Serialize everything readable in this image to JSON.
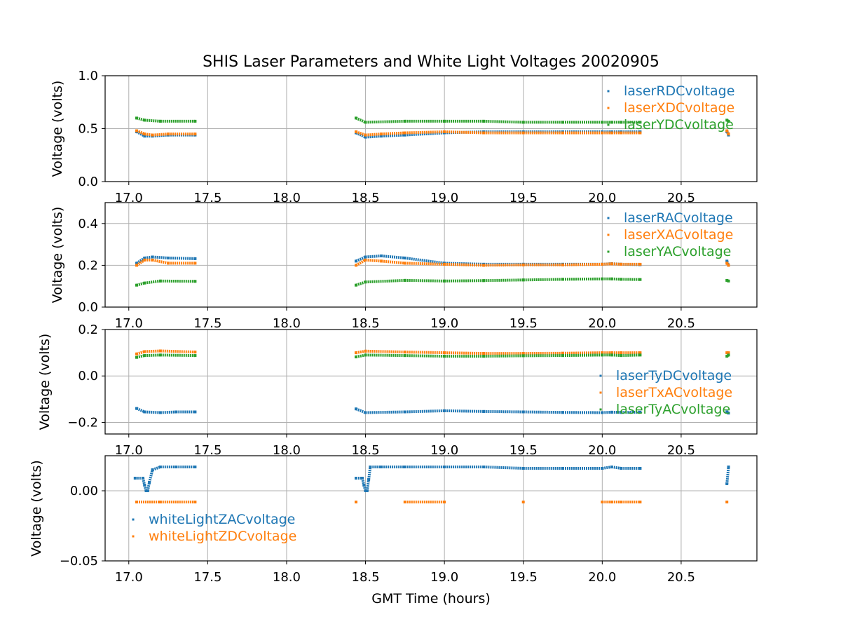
{
  "figure": {
    "title": "SHIS Laser Parameters and White Light Voltages 20020905",
    "xlabel": "GMT Time (hours)"
  },
  "colors": {
    "c0": "#1f77b4",
    "c1": "#ff7f0e",
    "c2": "#2ca02c",
    "grid": "#b0b0b0"
  },
  "chart_data": [
    {
      "type": "scatter",
      "ylabel": "Voltage (volts)",
      "xlim": [
        16.85,
        20.98
      ],
      "ylim": [
        0.0,
        1.0
      ],
      "xticks": [
        17.0,
        17.5,
        18.0,
        18.5,
        19.0,
        19.5,
        20.0,
        20.5
      ],
      "xtick_labels": [
        "17.0",
        "17.5",
        "18.0",
        "18.5",
        "19.0",
        "19.5",
        "20.0",
        "20.5"
      ],
      "yticks": [
        0.0,
        0.5,
        1.0
      ],
      "ytick_labels": [
        "0.0",
        "0.5",
        "1.0"
      ],
      "grid": true,
      "legend_position": "upper-right",
      "series": [
        {
          "name": "laserRDCvoltage",
          "color": "#1f77b4",
          "points": [
            [
              17.05,
              0.47
            ],
            [
              17.1,
              0.43
            ],
            [
              17.15,
              0.43
            ],
            [
              17.25,
              0.44
            ],
            [
              17.42,
              0.44
            ],
            [
              18.44,
              0.46
            ],
            [
              18.5,
              0.42
            ],
            [
              18.6,
              0.43
            ],
            [
              18.75,
              0.44
            ],
            [
              19.0,
              0.46
            ],
            [
              19.25,
              0.47
            ],
            [
              19.5,
              0.47
            ],
            [
              19.75,
              0.47
            ],
            [
              20.0,
              0.47
            ],
            [
              20.06,
              0.47
            ],
            [
              20.12,
              0.47
            ],
            [
              20.24,
              0.47
            ],
            [
              20.79,
              0.47
            ],
            [
              20.8,
              0.44
            ]
          ]
        },
        {
          "name": "laserXDCvoltage",
          "color": "#ff7f0e",
          "points": [
            [
              17.05,
              0.48
            ],
            [
              17.1,
              0.45
            ],
            [
              17.15,
              0.44
            ],
            [
              17.25,
              0.45
            ],
            [
              17.42,
              0.45
            ],
            [
              18.44,
              0.47
            ],
            [
              18.5,
              0.44
            ],
            [
              18.6,
              0.45
            ],
            [
              18.75,
              0.46
            ],
            [
              19.0,
              0.47
            ],
            [
              19.25,
              0.46
            ],
            [
              19.5,
              0.46
            ],
            [
              19.75,
              0.46
            ],
            [
              20.0,
              0.46
            ],
            [
              20.06,
              0.46
            ],
            [
              20.12,
              0.46
            ],
            [
              20.24,
              0.46
            ],
            [
              20.79,
              0.48
            ],
            [
              20.8,
              0.45
            ]
          ]
        },
        {
          "name": "laserYDCvoltage",
          "color": "#2ca02c",
          "points": [
            [
              17.05,
              0.6
            ],
            [
              17.1,
              0.58
            ],
            [
              17.2,
              0.57
            ],
            [
              17.42,
              0.57
            ],
            [
              18.44,
              0.6
            ],
            [
              18.5,
              0.56
            ],
            [
              18.75,
              0.57
            ],
            [
              19.0,
              0.57
            ],
            [
              19.25,
              0.57
            ],
            [
              19.5,
              0.56
            ],
            [
              19.75,
              0.56
            ],
            [
              20.0,
              0.56
            ],
            [
              20.06,
              0.56
            ],
            [
              20.12,
              0.56
            ],
            [
              20.24,
              0.56
            ],
            [
              20.79,
              0.58
            ],
            [
              20.8,
              0.57
            ]
          ]
        }
      ]
    },
    {
      "type": "scatter",
      "ylabel": "Voltage (volts)",
      "xlim": [
        16.85,
        20.98
      ],
      "ylim": [
        0.0,
        0.5
      ],
      "xticks": [
        17.0,
        17.5,
        18.0,
        18.5,
        19.0,
        19.5,
        20.0,
        20.5
      ],
      "xtick_labels": [
        "17.0",
        "17.5",
        "18.0",
        "18.5",
        "19.0",
        "19.5",
        "20.0",
        "20.5"
      ],
      "yticks": [
        0.0,
        0.2,
        0.4
      ],
      "ytick_labels": [
        "0.0",
        "0.2",
        "0.4"
      ],
      "grid": true,
      "legend_position": "upper-right",
      "series": [
        {
          "name": "laserRACvoltage",
          "color": "#1f77b4",
          "points": [
            [
              17.05,
              0.21
            ],
            [
              17.1,
              0.235
            ],
            [
              17.15,
              0.24
            ],
            [
              17.25,
              0.235
            ],
            [
              17.42,
              0.232
            ],
            [
              18.44,
              0.22
            ],
            [
              18.5,
              0.24
            ],
            [
              18.6,
              0.245
            ],
            [
              18.75,
              0.235
            ],
            [
              19.0,
              0.21
            ],
            [
              19.25,
              0.205
            ],
            [
              19.5,
              0.205
            ],
            [
              19.75,
              0.205
            ],
            [
              20.0,
              0.205
            ],
            [
              20.06,
              0.208
            ],
            [
              20.12,
              0.205
            ],
            [
              20.24,
              0.203
            ],
            [
              20.79,
              0.22
            ],
            [
              20.8,
              0.2
            ]
          ]
        },
        {
          "name": "laserXACvoltage",
          "color": "#ff7f0e",
          "points": [
            [
              17.05,
              0.2
            ],
            [
              17.1,
              0.225
            ],
            [
              17.15,
              0.225
            ],
            [
              17.25,
              0.21
            ],
            [
              17.42,
              0.21
            ],
            [
              18.44,
              0.2
            ],
            [
              18.5,
              0.225
            ],
            [
              18.6,
              0.22
            ],
            [
              18.75,
              0.21
            ],
            [
              19.0,
              0.205
            ],
            [
              19.25,
              0.2
            ],
            [
              19.5,
              0.202
            ],
            [
              19.75,
              0.202
            ],
            [
              20.0,
              0.205
            ],
            [
              20.06,
              0.207
            ],
            [
              20.12,
              0.205
            ],
            [
              20.24,
              0.205
            ],
            [
              20.79,
              0.21
            ],
            [
              20.8,
              0.2
            ]
          ]
        },
        {
          "name": "laserYACvoltage",
          "color": "#2ca02c",
          "points": [
            [
              17.05,
              0.105
            ],
            [
              17.1,
              0.115
            ],
            [
              17.2,
              0.125
            ],
            [
              17.42,
              0.123
            ],
            [
              18.44,
              0.105
            ],
            [
              18.5,
              0.12
            ],
            [
              18.75,
              0.128
            ],
            [
              19.0,
              0.125
            ],
            [
              19.25,
              0.127
            ],
            [
              19.5,
              0.13
            ],
            [
              19.75,
              0.133
            ],
            [
              20.0,
              0.135
            ],
            [
              20.06,
              0.135
            ],
            [
              20.12,
              0.133
            ],
            [
              20.24,
              0.132
            ],
            [
              20.79,
              0.128
            ],
            [
              20.8,
              0.125
            ]
          ]
        }
      ]
    },
    {
      "type": "scatter",
      "ylabel": "Voltage (volts)",
      "xlim": [
        16.85,
        20.98
      ],
      "ylim": [
        -0.25,
        0.2
      ],
      "xticks": [
        17.0,
        17.5,
        18.0,
        18.5,
        19.0,
        19.5,
        20.0,
        20.5
      ],
      "xtick_labels": [
        "17.0",
        "17.5",
        "18.0",
        "18.5",
        "19.0",
        "19.5",
        "20.0",
        "20.5"
      ],
      "yticks": [
        -0.2,
        0.0,
        0.2
      ],
      "ytick_labels": [
        "−0.2",
        "0.0",
        "0.2"
      ],
      "grid": true,
      "legend_position": "lower-right",
      "series": [
        {
          "name": "laserTyDCvoltage",
          "color": "#1f77b4",
          "points": [
            [
              17.05,
              -0.14
            ],
            [
              17.1,
              -0.155
            ],
            [
              17.2,
              -0.158
            ],
            [
              17.3,
              -0.155
            ],
            [
              17.42,
              -0.155
            ],
            [
              18.44,
              -0.142
            ],
            [
              18.5,
              -0.158
            ],
            [
              18.75,
              -0.155
            ],
            [
              19.0,
              -0.15
            ],
            [
              19.25,
              -0.153
            ],
            [
              19.5,
              -0.155
            ],
            [
              19.75,
              -0.157
            ],
            [
              20.0,
              -0.158
            ],
            [
              20.06,
              -0.156
            ],
            [
              20.12,
              -0.157
            ],
            [
              20.24,
              -0.156
            ],
            [
              20.79,
              -0.155
            ],
            [
              20.8,
              -0.16
            ]
          ]
        },
        {
          "name": "laserTxACvoltage",
          "color": "#ff7f0e",
          "points": [
            [
              17.05,
              0.095
            ],
            [
              17.1,
              0.105
            ],
            [
              17.2,
              0.108
            ],
            [
              17.42,
              0.103
            ],
            [
              18.44,
              0.1
            ],
            [
              18.5,
              0.107
            ],
            [
              18.75,
              0.103
            ],
            [
              19.0,
              0.1
            ],
            [
              19.25,
              0.097
            ],
            [
              19.5,
              0.097
            ],
            [
              19.75,
              0.098
            ],
            [
              20.0,
              0.1
            ],
            [
              20.06,
              0.1
            ],
            [
              20.12,
              0.1
            ],
            [
              20.24,
              0.1
            ],
            [
              20.79,
              0.1
            ],
            [
              20.8,
              0.1
            ]
          ]
        },
        {
          "name": "laserTyACvoltage",
          "color": "#2ca02c",
          "points": [
            [
              17.05,
              0.08
            ],
            [
              17.1,
              0.088
            ],
            [
              17.2,
              0.09
            ],
            [
              17.42,
              0.088
            ],
            [
              18.44,
              0.082
            ],
            [
              18.5,
              0.09
            ],
            [
              18.75,
              0.088
            ],
            [
              19.0,
              0.085
            ],
            [
              19.25,
              0.085
            ],
            [
              19.5,
              0.087
            ],
            [
              19.75,
              0.088
            ],
            [
              20.0,
              0.09
            ],
            [
              20.06,
              0.09
            ],
            [
              20.12,
              0.088
            ],
            [
              20.24,
              0.09
            ],
            [
              20.79,
              0.085
            ],
            [
              20.8,
              0.09
            ]
          ]
        }
      ]
    },
    {
      "type": "scatter",
      "ylabel": "Voltage (volts)",
      "xlim": [
        16.85,
        20.98
      ],
      "ylim": [
        -0.05,
        0.025
      ],
      "xticks": [
        17.0,
        17.5,
        18.0,
        18.5,
        19.0,
        19.5,
        20.0,
        20.5
      ],
      "xtick_labels": [
        "17.0",
        "17.5",
        "18.0",
        "18.5",
        "19.0",
        "19.5",
        "20.0",
        "20.5"
      ],
      "yticks": [
        -0.05,
        0.0
      ],
      "ytick_labels": [
        "−0.05",
        "0.00"
      ],
      "grid": true,
      "legend_position": "lower-left",
      "series": [
        {
          "name": "whiteLightZACvoltage",
          "color": "#1f77b4",
          "points": [
            [
              17.04,
              0.009
            ],
            [
              17.09,
              0.009
            ],
            [
              17.1,
              0.004
            ],
            [
              17.11,
              0.0
            ],
            [
              17.12,
              0.0
            ],
            [
              17.13,
              0.006
            ],
            [
              17.15,
              0.015
            ],
            [
              17.2,
              0.017
            ],
            [
              17.3,
              0.017
            ],
            [
              17.42,
              0.017
            ],
            [
              18.44,
              0.009
            ],
            [
              18.48,
              0.009
            ],
            [
              18.49,
              0.004
            ],
            [
              18.5,
              0.0
            ],
            [
              18.51,
              0.0
            ],
            [
              18.52,
              0.008
            ],
            [
              18.53,
              0.017
            ],
            [
              18.6,
              0.017
            ],
            [
              18.75,
              0.017
            ],
            [
              19.0,
              0.017
            ],
            [
              19.25,
              0.017
            ],
            [
              19.5,
              0.016
            ],
            [
              19.75,
              0.016
            ],
            [
              20.0,
              0.016
            ],
            [
              20.06,
              0.017
            ],
            [
              20.12,
              0.016
            ],
            [
              20.24,
              0.016
            ],
            [
              20.79,
              0.005
            ],
            [
              20.8,
              0.017
            ]
          ]
        },
        {
          "name": "whiteLightZDCvoltage",
          "color": "#ff7f0e",
          "points": [
            [
              17.05,
              -0.008
            ],
            [
              17.2,
              -0.008
            ],
            [
              17.42,
              -0.008
            ],
            [
              18.44,
              -0.008
            ],
            [
              18.75,
              -0.008
            ],
            [
              19.0,
              -0.008
            ],
            [
              19.5,
              -0.008
            ],
            [
              20.0,
              -0.008
            ],
            [
              20.06,
              -0.008
            ],
            [
              20.12,
              -0.008
            ],
            [
              20.24,
              -0.008
            ],
            [
              20.79,
              -0.008
            ]
          ]
        }
      ]
    }
  ]
}
